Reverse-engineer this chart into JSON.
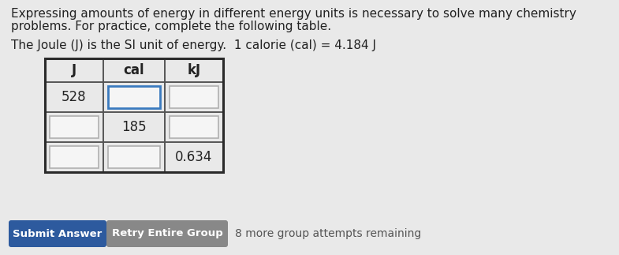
{
  "background_color": "#e9e9e9",
  "title_text1": "Expressing amounts of energy in different energy units is necessary to solve many chemistry",
  "title_text2": "problems. For practice, complete the following table.",
  "subtitle": "The Joule (J) is the SI unit of energy.  1 calorie (cal) = 4.184 J",
  "headers": [
    "J",
    "cal",
    "kJ"
  ],
  "rows": [
    [
      "528",
      "",
      ""
    ],
    [
      "",
      "185",
      ""
    ],
    [
      "",
      "",
      "0.634"
    ]
  ],
  "active_cell": [
    0,
    1
  ],
  "input_box_color": "#f5f5f5",
  "input_box_border_blank": "#b0b0b0",
  "active_input_border": "#3a7abf",
  "table_outer_border": "#2a2a2a",
  "table_line_color": "#555555",
  "btn_submit_color": "#2d5a9e",
  "btn_retry_color": "#888888",
  "btn_text_color": "#ffffff",
  "btn_submit_text": "Submit Answer",
  "btn_retry_text": "Retry Entire Group",
  "remaining_text": "8 more group attempts remaining",
  "text_color": "#222222",
  "remaining_text_color": "#555555",
  "header_font_size": 12,
  "cell_font_size": 12,
  "body_font_size": 11
}
